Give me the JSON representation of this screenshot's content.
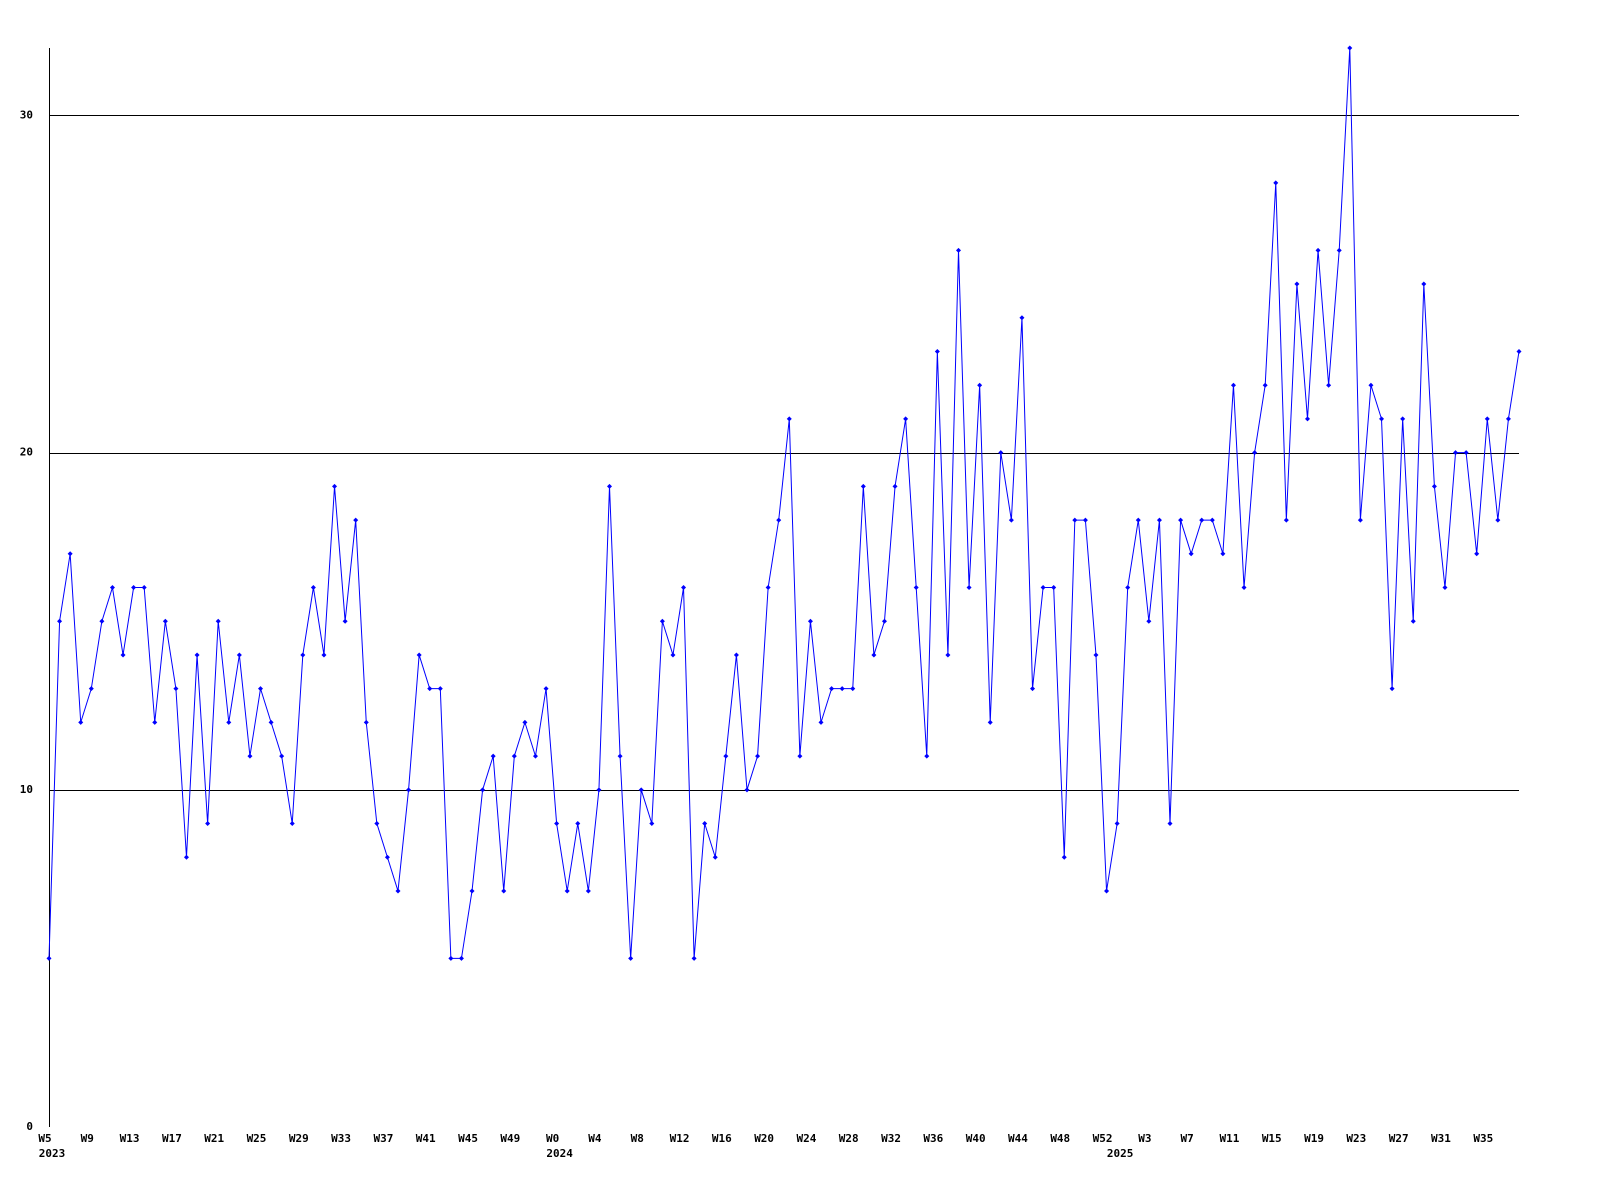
{
  "chart_data": {
    "type": "line",
    "categories": [
      "W5",
      null,
      null,
      null,
      "W9",
      null,
      null,
      null,
      "W13",
      null,
      null,
      null,
      "W17",
      null,
      null,
      null,
      "W21",
      null,
      null,
      null,
      "W25",
      null,
      null,
      null,
      "W29",
      null,
      null,
      null,
      "W33",
      null,
      null,
      null,
      "W37",
      null,
      null,
      null,
      "W41",
      null,
      null,
      null,
      "W45",
      null,
      null,
      null,
      "W49",
      null,
      null,
      null,
      "W0",
      null,
      null,
      null,
      "W4",
      null,
      null,
      null,
      "W8",
      null,
      null,
      null,
      "W12",
      null,
      null,
      null,
      "W16",
      null,
      null,
      null,
      "W20",
      null,
      null,
      null,
      "W24",
      null,
      null,
      null,
      "W28",
      null,
      null,
      null,
      "W32",
      null,
      null,
      null,
      "W36",
      null,
      null,
      null,
      "W40",
      null,
      null,
      null,
      "W44",
      null,
      null,
      null,
      "W48",
      null,
      null,
      null,
      "W52",
      null,
      null,
      null,
      "W3",
      null,
      null,
      null,
      "W7",
      null,
      null,
      null,
      "W11",
      null,
      null,
      null,
      "W15",
      null,
      null,
      null,
      "W19",
      null,
      null,
      null,
      "W23",
      null,
      null,
      null,
      "W27",
      null,
      null,
      null,
      "W31",
      null,
      null,
      null,
      "W35",
      null,
      null,
      null
    ],
    "years": [
      "2023",
      null,
      null,
      null,
      null,
      null,
      null,
      null,
      null,
      null,
      null,
      null,
      null,
      null,
      null,
      null,
      null,
      null,
      null,
      null,
      null,
      null,
      null,
      null,
      null,
      null,
      null,
      null,
      null,
      null,
      null,
      null,
      null,
      null,
      null,
      null,
      null,
      null,
      null,
      null,
      null,
      null,
      null,
      null,
      null,
      null,
      null,
      null,
      "2024",
      null,
      null,
      null,
      null,
      null,
      null,
      null,
      null,
      null,
      null,
      null,
      null,
      null,
      null,
      null,
      null,
      null,
      null,
      null,
      null,
      null,
      null,
      null,
      null,
      null,
      null,
      null,
      null,
      null,
      null,
      null,
      null,
      null,
      null,
      null,
      null,
      null,
      null,
      null,
      null,
      null,
      null,
      null,
      null,
      null,
      null,
      null,
      null,
      null,
      null,
      null,
      null,
      "2025",
      null,
      null,
      null,
      null,
      null,
      null,
      null,
      null,
      null,
      null,
      null,
      null,
      null,
      null,
      null,
      null,
      null,
      null,
      null,
      null,
      null,
      null,
      null,
      null,
      null,
      null,
      null,
      null,
      null,
      null,
      null,
      null,
      null,
      null,
      null,
      null,
      null,
      null
    ],
    "values": [
      5,
      15,
      17,
      12,
      13,
      15,
      16,
      14,
      16,
      16,
      12,
      15,
      13,
      8,
      14,
      9,
      15,
      12,
      14,
      11,
      13,
      12,
      11,
      9,
      14,
      16,
      14,
      19,
      15,
      18,
      12,
      9,
      8,
      7,
      10,
      14,
      13,
      13,
      5,
      5,
      7,
      10,
      11,
      7,
      11,
      12,
      11,
      13,
      9,
      7,
      9,
      7,
      10,
      19,
      11,
      5,
      10,
      9,
      15,
      14,
      16,
      5,
      9,
      8,
      11,
      14,
      10,
      11,
      16,
      18,
      21,
      11,
      15,
      12,
      13,
      13,
      13,
      19,
      14,
      15,
      19,
      21,
      16,
      11,
      23,
      14,
      26,
      16,
      22,
      12,
      20,
      18,
      24,
      13,
      16,
      16,
      8,
      18,
      18,
      14,
      7,
      9,
      16,
      18,
      15,
      18,
      9,
      18,
      17,
      18,
      18,
      17,
      22,
      16,
      20,
      22,
      28,
      18,
      25,
      21,
      26,
      22,
      26,
      32,
      18,
      22,
      21,
      13,
      21,
      15,
      25,
      19,
      16,
      20,
      20,
      17,
      21,
      18,
      21,
      23
    ],
    "color": "#0000ff",
    "grid_color": "#000000",
    "ylim": [
      0,
      32
    ],
    "yticks": [
      0,
      10,
      20,
      30
    ],
    "grid": true
  }
}
